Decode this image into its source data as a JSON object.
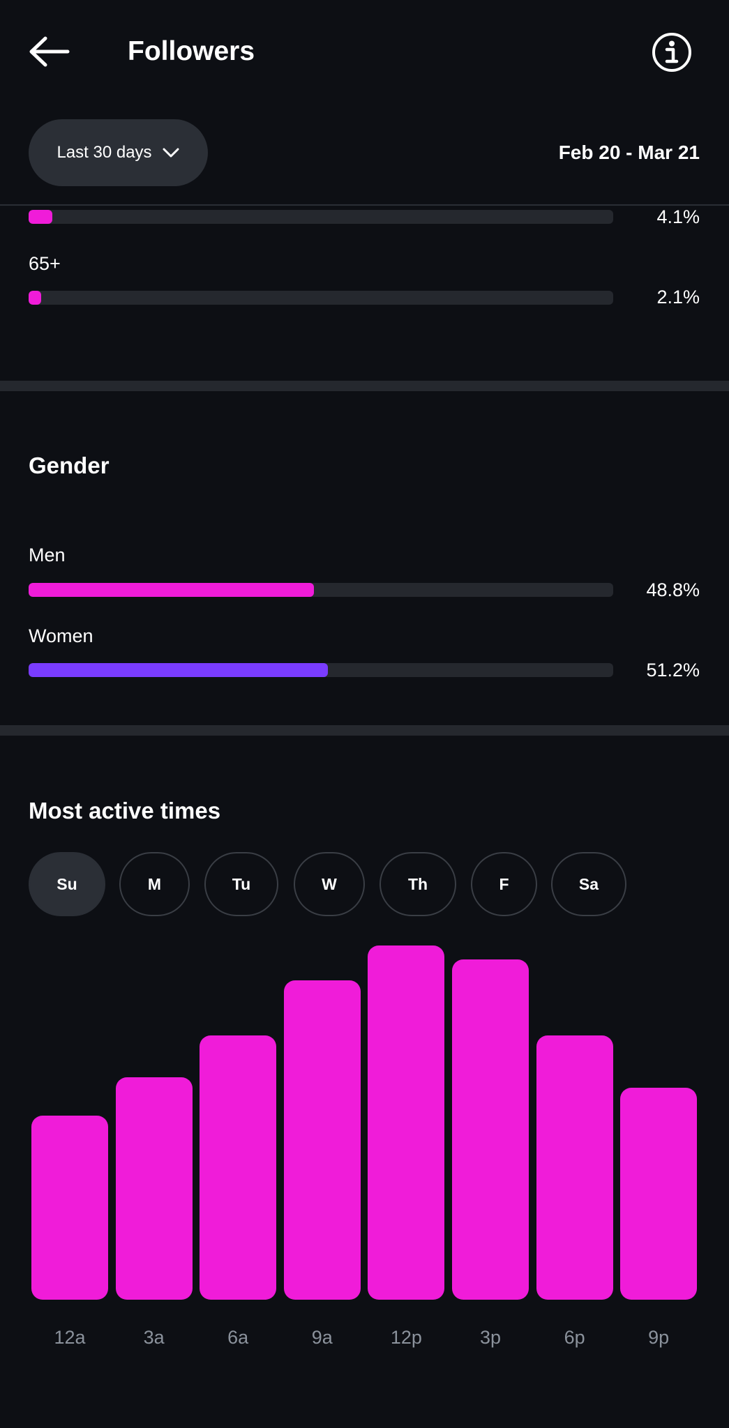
{
  "header": {
    "title": "Followers",
    "back_icon": "arrow-left-icon",
    "info_icon": "info-circle-icon"
  },
  "filter": {
    "range_label": "Last 30 days",
    "chevron_icon": "chevron-down-icon",
    "date_range": "Feb 20 - Mar 21"
  },
  "age": {
    "rows": [
      {
        "label": "",
        "percent_text": "4.1%",
        "value": 0.041
      },
      {
        "label": "65+",
        "percent_text": "2.1%",
        "value": 0.021
      }
    ]
  },
  "gender": {
    "title": "Gender",
    "rows": [
      {
        "label": "Men",
        "percent_text": "48.8%",
        "value": 0.488,
        "color": "#f01cd9"
      },
      {
        "label": "Women",
        "percent_text": "51.2%",
        "value": 0.512,
        "color": "#7a3cff"
      }
    ]
  },
  "active_times": {
    "title": "Most active times",
    "days": [
      "Su",
      "M",
      "Tu",
      "W",
      "Th",
      "F",
      "Sa"
    ],
    "selected_day": "Su"
  },
  "colors": {
    "accent_pink": "#f01cd9",
    "accent_purple": "#7a3cff",
    "track": "#25282e",
    "background": "#0d0f14"
  },
  "chart_data": {
    "type": "bar",
    "categories": [
      "12a",
      "3a",
      "6a",
      "9a",
      "12p",
      "3p",
      "6p",
      "9p"
    ],
    "values": [
      53,
      64,
      76,
      92,
      102,
      98,
      76,
      61
    ],
    "ylim": [
      0,
      102
    ],
    "grid": false,
    "color": "#f01cd9"
  }
}
